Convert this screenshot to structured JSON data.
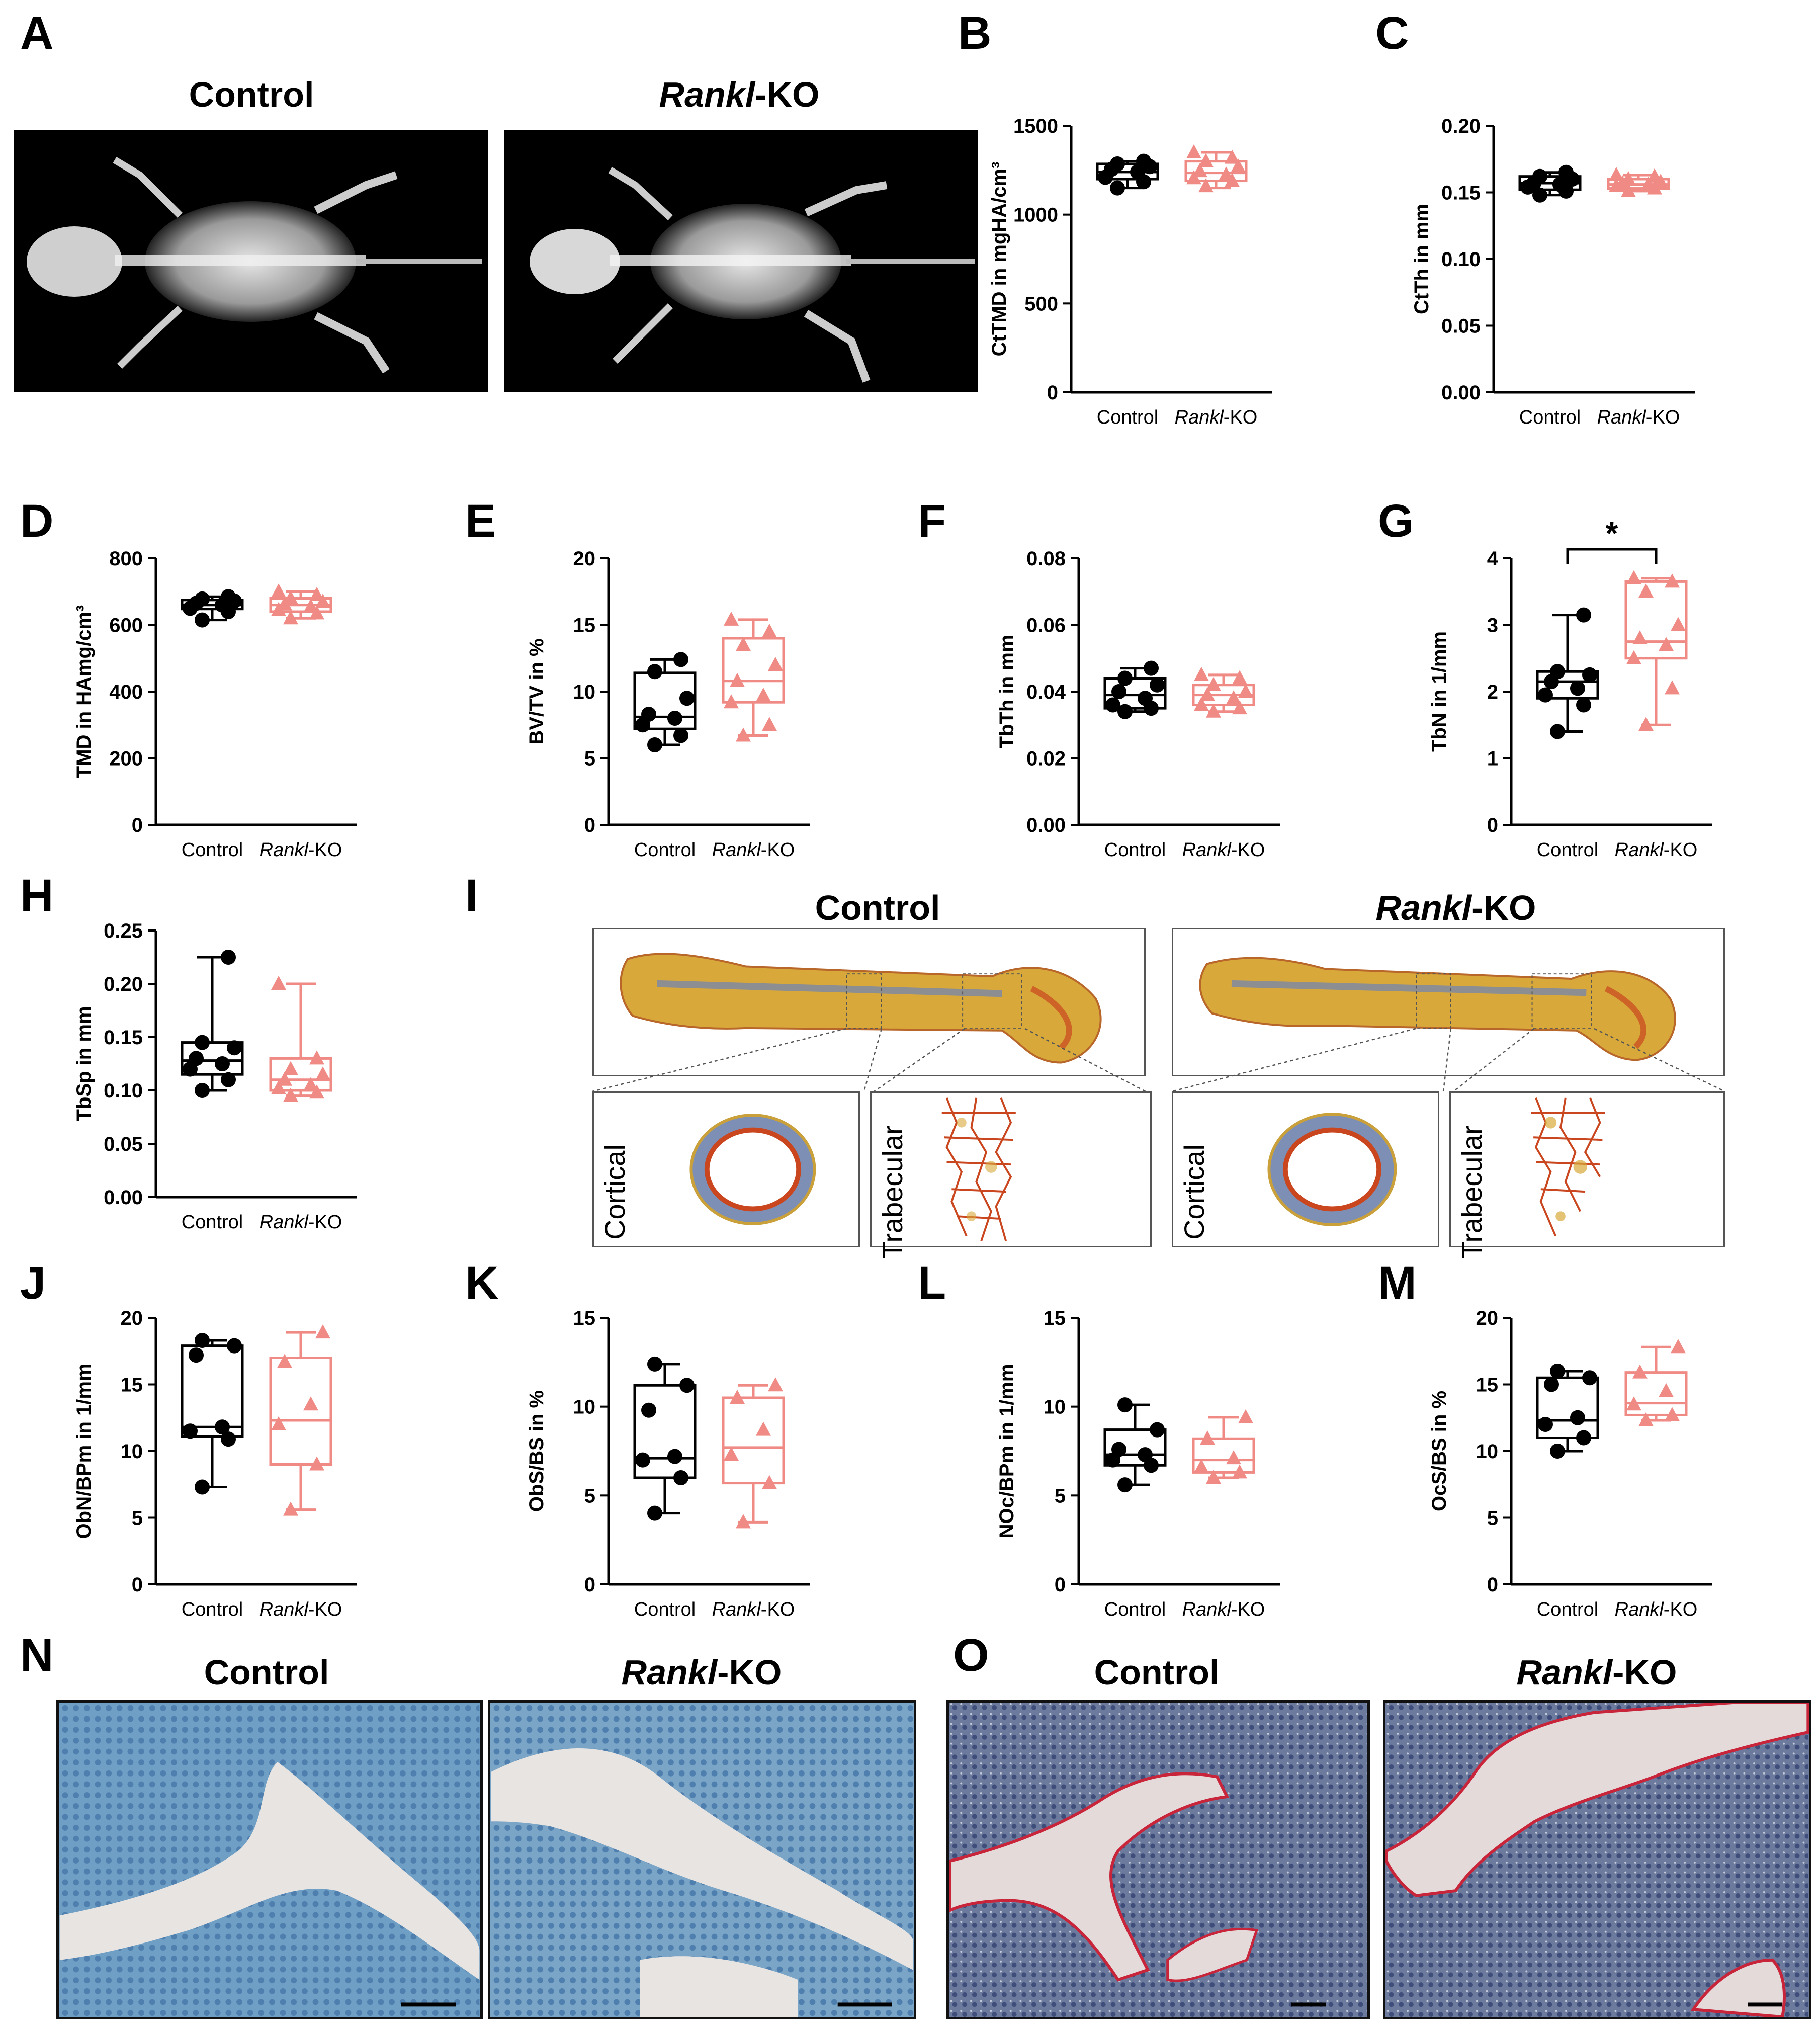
{
  "panels": {
    "A": {
      "letter": "A",
      "headers": {
        "left": "Control",
        "right_ital": "Rankl",
        "right_suffix": "-KO"
      }
    },
    "I": {
      "letter": "I",
      "headers": {
        "left": "Control",
        "right_ital": "Rankl",
        "right_suffix": "-KO"
      },
      "insets": {
        "cortical": "Cortical",
        "trabecular": "Trabecular"
      }
    },
    "N": {
      "letter": "N",
      "headers": {
        "left": "Control",
        "right_ital": "Rankl",
        "right_suffix": "-KO"
      }
    },
    "O": {
      "letter": "O",
      "headers": {
        "left": "Control",
        "right_ital": "Rankl",
        "right_suffix": "-KO"
      }
    }
  },
  "colors": {
    "control": "#000000",
    "rankl": "#F08A85"
  },
  "chart_data": [
    {
      "id": "B",
      "type": "box",
      "ylabel": "CtTMD in mgHA/cm³",
      "ylim": [
        0,
        1500
      ],
      "yticks": [
        0,
        500,
        1000,
        1500
      ],
      "categories": [
        {
          "label": "Control"
        },
        {
          "label_ital": "Rankl",
          "label_suffix": "-KO"
        }
      ],
      "boxes": [
        {
          "min": 1150,
          "q1": 1200,
          "median": 1240,
          "q3": 1285,
          "max": 1300,
          "points": [
            1150,
            1185,
            1210,
            1240,
            1255,
            1270,
            1285,
            1300
          ]
        },
        {
          "min": 1150,
          "q1": 1190,
          "median": 1235,
          "q3": 1300,
          "max": 1350,
          "points": [
            1160,
            1190,
            1205,
            1225,
            1245,
            1270,
            1300,
            1320,
            1350
          ]
        }
      ]
    },
    {
      "id": "C",
      "type": "box",
      "ylabel": "CtTh in mm",
      "ylim": [
        0,
        0.2
      ],
      "yticks": [
        0,
        0.05,
        0.1,
        0.15,
        0.2
      ],
      "decimals": 2,
      "categories": [
        {
          "label": "Control"
        },
        {
          "label_ital": "Rankl",
          "label_suffix": "-KO"
        }
      ],
      "boxes": [
        {
          "min": 0.148,
          "q1": 0.152,
          "median": 0.157,
          "q3": 0.162,
          "max": 0.165,
          "points": [
            0.148,
            0.151,
            0.154,
            0.156,
            0.157,
            0.16,
            0.162,
            0.165
          ]
        },
        {
          "min": 0.151,
          "q1": 0.153,
          "median": 0.156,
          "q3": 0.16,
          "max": 0.163,
          "points": [
            0.151,
            0.153,
            0.155,
            0.156,
            0.157,
            0.158,
            0.16,
            0.162,
            0.163
          ]
        }
      ]
    },
    {
      "id": "D",
      "type": "box",
      "ylabel": "TMD in HAmg/cm³",
      "ylim": [
        0,
        800
      ],
      "yticks": [
        0,
        200,
        400,
        600,
        800
      ],
      "categories": [
        {
          "label": "Control"
        },
        {
          "label_ital": "Rankl",
          "label_suffix": "-KO"
        }
      ],
      "boxes": [
        {
          "min": 615,
          "q1": 648,
          "median": 660,
          "q3": 675,
          "max": 685,
          "points": [
            615,
            640,
            650,
            660,
            665,
            672,
            678,
            685
          ]
        },
        {
          "min": 620,
          "q1": 640,
          "median": 660,
          "q3": 680,
          "max": 700,
          "points": [
            620,
            635,
            645,
            655,
            662,
            670,
            680,
            690,
            700
          ]
        }
      ]
    },
    {
      "id": "E",
      "type": "box",
      "ylabel": "BV/TV in %",
      "ylim": [
        0,
        20
      ],
      "yticks": [
        0,
        5,
        10,
        15,
        20
      ],
      "categories": [
        {
          "label": "Control"
        },
        {
          "label_ital": "Rankl",
          "label_suffix": "-KO"
        }
      ],
      "boxes": [
        {
          "min": 6,
          "q1": 7.2,
          "median": 8.1,
          "q3": 11.4,
          "max": 12.4,
          "points": [
            6,
            6.7,
            7.5,
            8,
            8.3,
            9.5,
            11.5,
            12.4
          ]
        },
        {
          "min": 6.7,
          "q1": 9.2,
          "median": 10.8,
          "q3": 14,
          "max": 15.4,
          "points": [
            6.7,
            7.5,
            9.2,
            9.7,
            10.8,
            12,
            13.5,
            14.5,
            15.4
          ]
        }
      ]
    },
    {
      "id": "F",
      "type": "box",
      "ylabel": "TbTh in mm",
      "ylim": [
        0,
        0.08
      ],
      "yticks": [
        0,
        0.02,
        0.04,
        0.06,
        0.08
      ],
      "decimals": 2,
      "categories": [
        {
          "label": "Control"
        },
        {
          "label_ital": "Rankl",
          "label_suffix": "-KO"
        }
      ],
      "boxes": [
        {
          "min": 0.034,
          "q1": 0.035,
          "median": 0.039,
          "q3": 0.044,
          "max": 0.047,
          "points": [
            0.034,
            0.035,
            0.036,
            0.038,
            0.04,
            0.042,
            0.044,
            0.047
          ]
        },
        {
          "min": 0.034,
          "q1": 0.036,
          "median": 0.039,
          "q3": 0.042,
          "max": 0.045,
          "points": [
            0.034,
            0.035,
            0.036,
            0.038,
            0.039,
            0.04,
            0.042,
            0.044,
            0.045
          ]
        }
      ]
    },
    {
      "id": "G",
      "type": "box",
      "ylabel": "TbN in 1/mm",
      "ylim": [
        0,
        4
      ],
      "yticks": [
        0,
        1,
        2,
        3,
        4
      ],
      "categories": [
        {
          "label": "Control"
        },
        {
          "label_ital": "Rankl",
          "label_suffix": "-KO"
        }
      ],
      "significance": "*",
      "boxes": [
        {
          "min": 1.4,
          "q1": 1.9,
          "median": 2.15,
          "q3": 2.3,
          "max": 3.15,
          "points": [
            1.4,
            1.8,
            1.95,
            2.05,
            2.15,
            2.25,
            2.3,
            3.15
          ]
        },
        {
          "min": 1.5,
          "q1": 2.5,
          "median": 2.75,
          "q3": 3.65,
          "max": 3.7,
          "points": [
            1.5,
            2.05,
            2.5,
            2.7,
            2.8,
            3,
            3.5,
            3.65,
            3.7
          ]
        }
      ]
    },
    {
      "id": "H",
      "type": "box",
      "ylabel": "TbSp in mm",
      "ylim": [
        0,
        0.25
      ],
      "yticks": [
        0,
        0.05,
        0.1,
        0.15,
        0.2,
        0.25
      ],
      "decimals": 2,
      "categories": [
        {
          "label": "Control"
        },
        {
          "label_ital": "Rankl",
          "label_suffix": "-KO"
        }
      ],
      "boxes": [
        {
          "min": 0.1,
          "q1": 0.115,
          "median": 0.128,
          "q3": 0.145,
          "max": 0.225,
          "points": [
            0.1,
            0.11,
            0.12,
            0.125,
            0.13,
            0.14,
            0.145,
            0.225
          ]
        },
        {
          "min": 0.095,
          "q1": 0.1,
          "median": 0.11,
          "q3": 0.13,
          "max": 0.2,
          "points": [
            0.095,
            0.098,
            0.102,
            0.105,
            0.11,
            0.115,
            0.12,
            0.13,
            0.2
          ]
        }
      ]
    },
    {
      "id": "J",
      "type": "box",
      "ylabel": "ObN/BPm in 1/mm",
      "ylim": [
        0,
        20
      ],
      "yticks": [
        0,
        5,
        10,
        15,
        20
      ],
      "categories": [
        {
          "label": "Control"
        },
        {
          "label_ital": "Rankl",
          "label_suffix": "-KO"
        }
      ],
      "boxes": [
        {
          "min": 7.3,
          "q1": 11.1,
          "median": 11.8,
          "q3": 17.9,
          "max": 18.3,
          "points": [
            7.3,
            10.9,
            11.5,
            11.8,
            17.2,
            17.9,
            18.3
          ]
        },
        {
          "min": 5.6,
          "q1": 9,
          "median": 12.3,
          "q3": 17,
          "max": 18.9,
          "points": [
            5.6,
            9,
            12,
            13.5,
            16.7,
            18.9
          ]
        }
      ]
    },
    {
      "id": "K",
      "type": "box",
      "ylabel": "ObS/BS in %",
      "ylim": [
        0,
        15
      ],
      "yticks": [
        0,
        5,
        10,
        15
      ],
      "categories": [
        {
          "label": "Control"
        },
        {
          "label_ital": "Rankl",
          "label_suffix": "-KO"
        }
      ],
      "boxes": [
        {
          "min": 4,
          "q1": 6,
          "median": 7.1,
          "q3": 11.2,
          "max": 12.4,
          "points": [
            4,
            6,
            7,
            7.2,
            9.8,
            11.2,
            12.4
          ]
        },
        {
          "min": 3.5,
          "q1": 5.7,
          "median": 7.7,
          "q3": 10.5,
          "max": 11.2,
          "points": [
            3.5,
            5.7,
            7.3,
            8.7,
            10.5,
            11.2
          ]
        }
      ]
    },
    {
      "id": "L",
      "type": "box",
      "ylabel": "NOc/BPm in 1/mm",
      "ylim": [
        0,
        15
      ],
      "yticks": [
        0,
        5,
        10,
        15
      ],
      "categories": [
        {
          "label": "Control"
        },
        {
          "label_ital": "Rankl",
          "label_suffix": "-KO"
        }
      ],
      "boxes": [
        {
          "min": 5.6,
          "q1": 6.7,
          "median": 7.3,
          "q3": 8.7,
          "max": 10.1,
          "points": [
            5.6,
            6.7,
            7,
            7.3,
            7.6,
            8.7,
            10.1
          ]
        },
        {
          "min": 6,
          "q1": 6.3,
          "median": 7,
          "q3": 8.2,
          "max": 9.4,
          "points": [
            6,
            6.3,
            6.6,
            7.1,
            8.2,
            9.4
          ]
        }
      ]
    },
    {
      "id": "M",
      "type": "box",
      "ylabel": "OcS/BS in %",
      "ylim": [
        0,
        20
      ],
      "yticks": [
        0,
        5,
        10,
        15,
        20
      ],
      "categories": [
        {
          "label": "Control"
        },
        {
          "label_ital": "Rankl",
          "label_suffix": "-KO"
        }
      ],
      "boxes": [
        {
          "min": 10,
          "q1": 11,
          "median": 12.3,
          "q3": 15.5,
          "max": 16,
          "points": [
            10,
            11,
            12,
            12.5,
            15,
            15.5,
            16
          ]
        },
        {
          "min": 12.3,
          "q1": 12.7,
          "median": 13.6,
          "q3": 15.9,
          "max": 17.8,
          "points": [
            12.3,
            12.7,
            13.5,
            14.5,
            15.9,
            17.8
          ]
        }
      ]
    }
  ]
}
